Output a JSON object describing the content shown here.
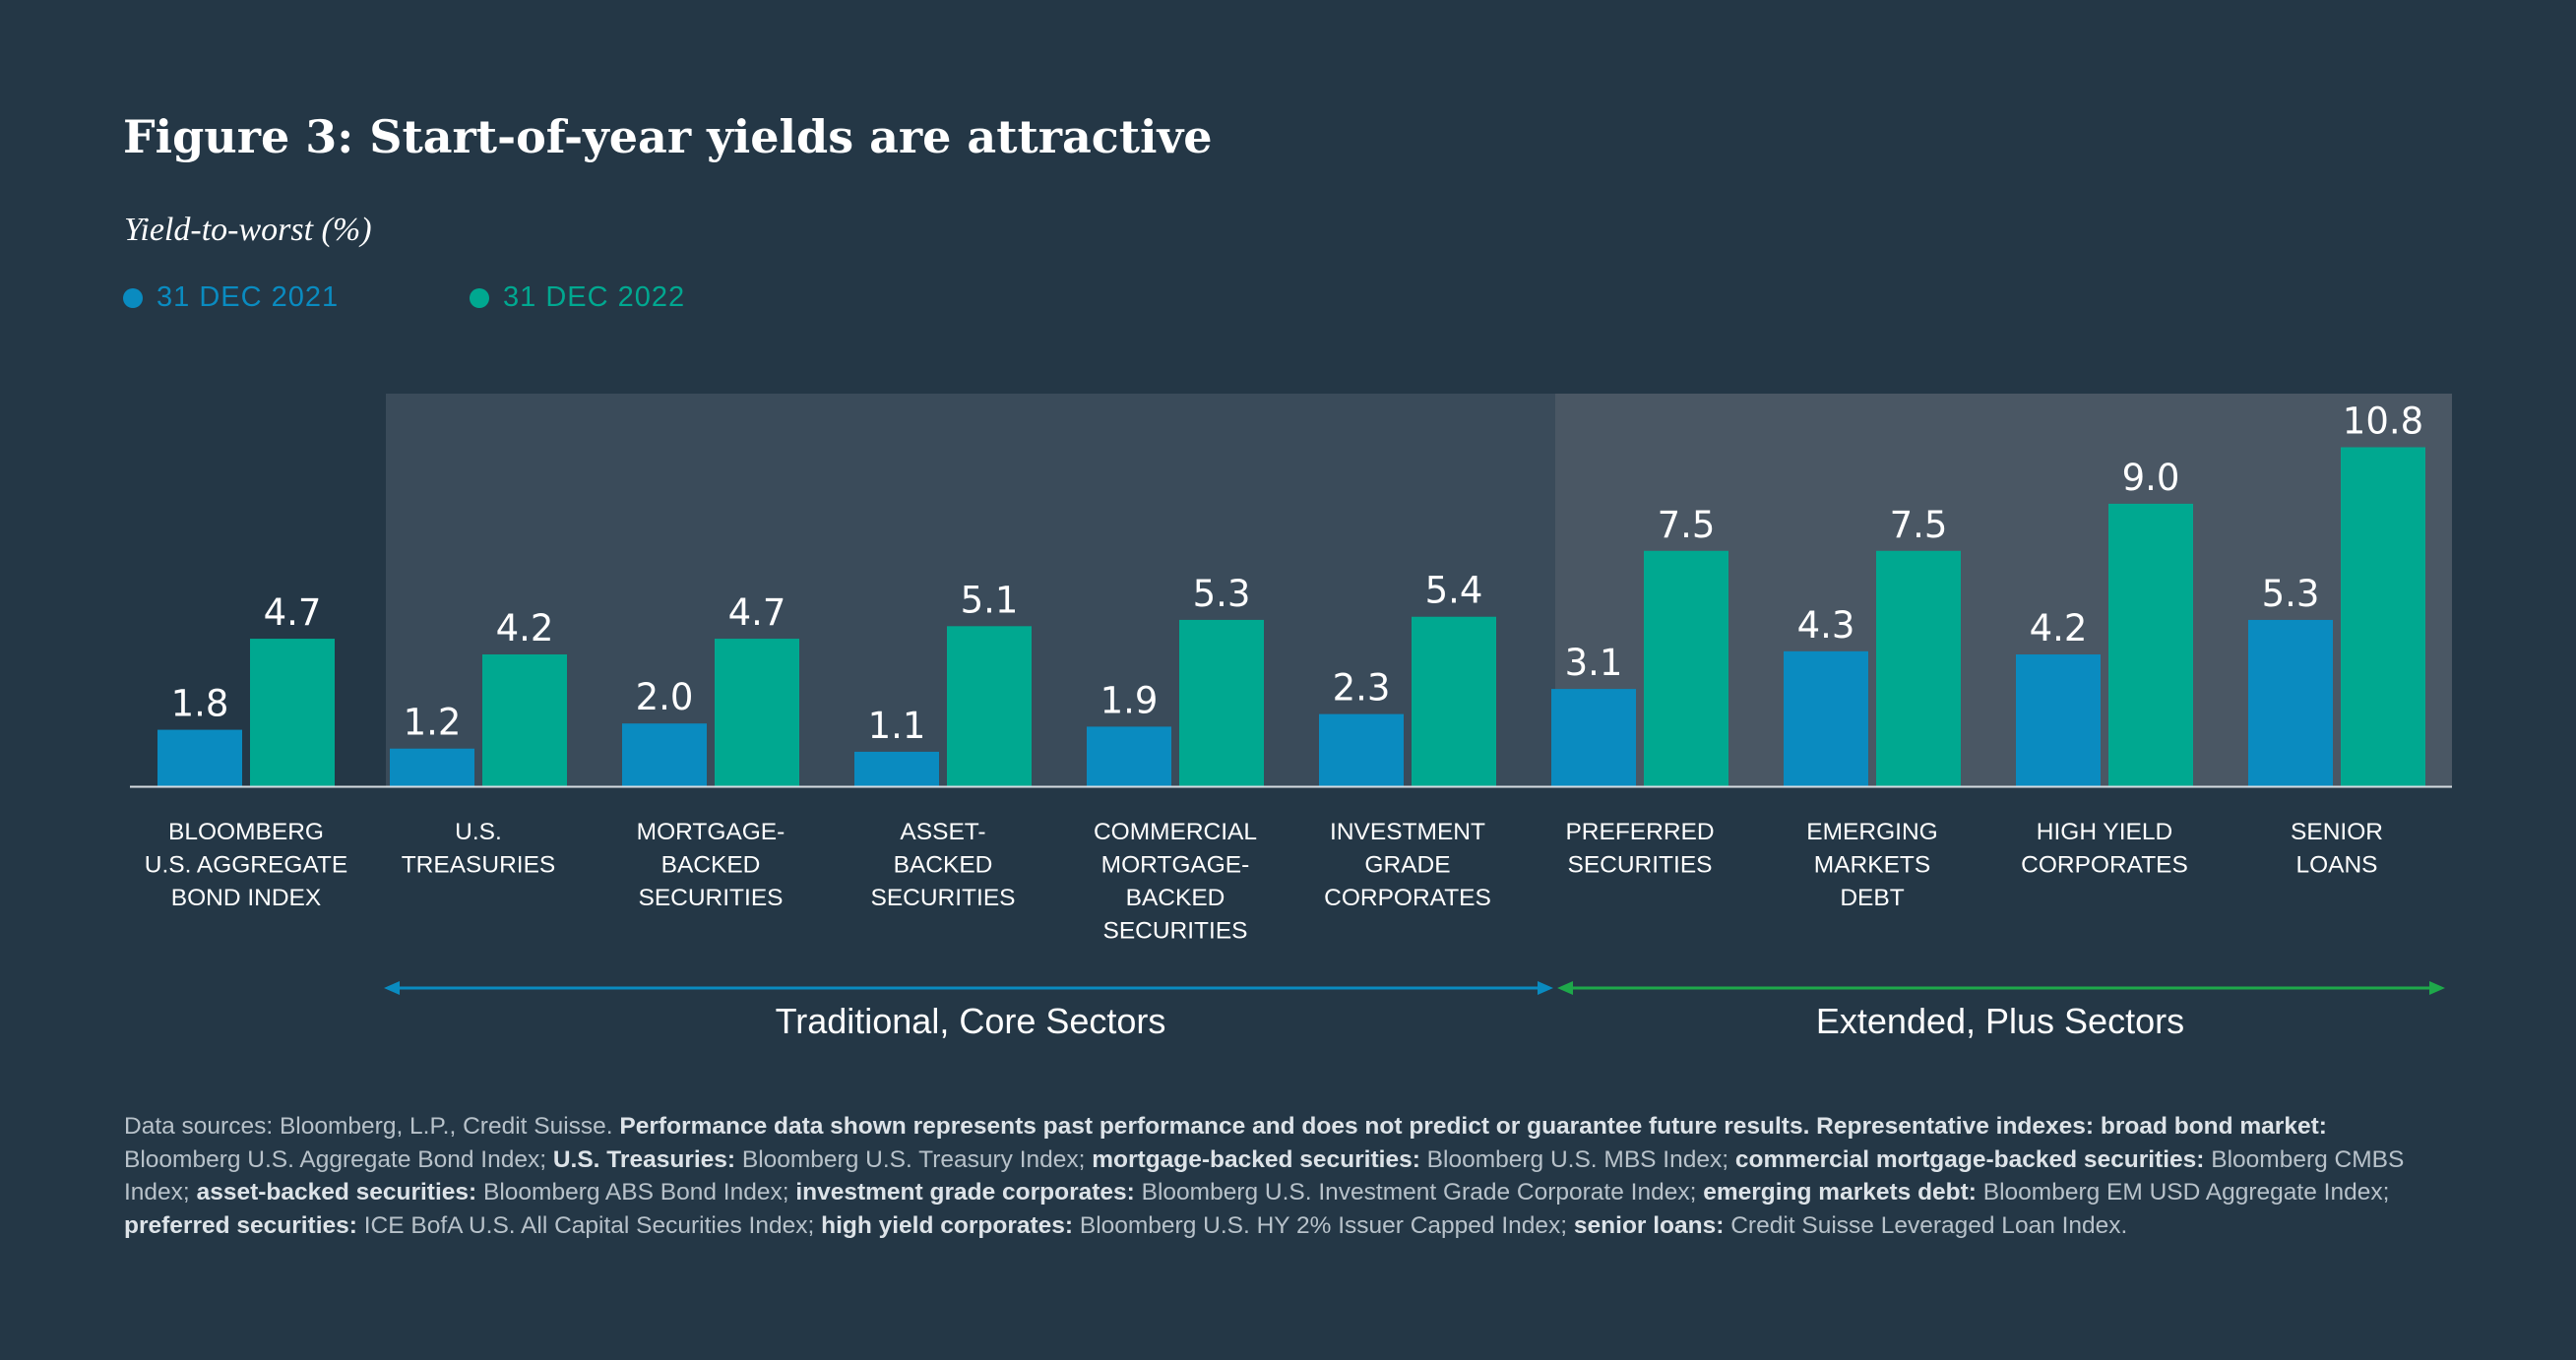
{
  "title": "Figure 3: Start-of-year yields are attractive",
  "subtitle": "Yield-to-worst (%)",
  "colors": {
    "background": "#243746",
    "series_2021": "#0a8bc0",
    "series_2022": "#00a890",
    "panel_core": "#3a4b5a",
    "panel_plus": "#4a5764",
    "arrow_core": "#0a8bc0",
    "arrow_plus": "#1ea84a"
  },
  "chart_data": {
    "type": "bar",
    "title": "Figure 3: Start-of-year yields are attractive",
    "ylabel": "Yield-to-worst (%)",
    "xlabel": "",
    "ylim": [
      0,
      11
    ],
    "grid": false,
    "legend_position": "top-left",
    "categories": [
      [
        "BLOOMBERG",
        "U.S. AGGREGATE",
        "BOND INDEX"
      ],
      [
        "U.S.",
        "TREASURIES"
      ],
      [
        "MORTGAGE-",
        "BACKED",
        "SECURITIES"
      ],
      [
        "ASSET-",
        "BACKED",
        "SECURITIES"
      ],
      [
        "COMMERCIAL",
        "MORTGAGE-",
        "BACKED",
        "SECURITIES"
      ],
      [
        "INVESTMENT",
        "GRADE",
        "CORPORATES"
      ],
      [
        "PREFERRED",
        "SECURITIES"
      ],
      [
        "EMERGING",
        "MARKETS",
        "DEBT"
      ],
      [
        "HIGH YIELD",
        "CORPORATES"
      ],
      [
        "SENIOR",
        "LOANS"
      ]
    ],
    "series": [
      {
        "name": "31 DEC 2021",
        "values": [
          1.8,
          1.2,
          2.0,
          1.1,
          1.9,
          2.3,
          3.1,
          4.3,
          4.2,
          5.3
        ],
        "labels": [
          "1.8",
          "1.2",
          "2.0",
          "1.1",
          "1.9",
          "2.3",
          "3.1",
          "4.3",
          "4.2",
          "5.3"
        ]
      },
      {
        "name": "31 DEC 2022",
        "values": [
          4.7,
          4.2,
          4.7,
          5.1,
          5.3,
          5.4,
          7.5,
          7.5,
          9.0,
          10.8
        ],
        "labels": [
          "4.7",
          "4.2",
          "4.7",
          "5.1",
          "5.3",
          "5.4",
          "7.5",
          "7.5",
          "9.0",
          "10.8"
        ]
      }
    ],
    "groups": [
      {
        "label": "Traditional, Core Sectors",
        "start_index": 1,
        "end_index": 5
      },
      {
        "label": "Extended, Plus Sectors",
        "start_index": 6,
        "end_index": 9
      }
    ]
  },
  "footnote": [
    {
      "text": "Data sources: Bloomberg, L.P., Credit Suisse. ",
      "bold": false
    },
    {
      "text": "Performance data shown represents past performance and does not predict or guarantee future results. Representative indexes: broad bond market:",
      "bold": true
    },
    {
      "text": " Bloomberg U.S. Aggregate Bond Index; ",
      "bold": false
    },
    {
      "text": "U.S. Treasuries:",
      "bold": true
    },
    {
      "text": " Bloomberg U.S. Treasury Index; ",
      "bold": false
    },
    {
      "text": "mortgage-backed securities:",
      "bold": true
    },
    {
      "text": " Bloomberg U.S. MBS Index; ",
      "bold": false
    },
    {
      "text": "commercial mortgage-backed securities:",
      "bold": true
    },
    {
      "text": " Bloomberg CMBS Index; ",
      "bold": false
    },
    {
      "text": "asset-backed securities:",
      "bold": true
    },
    {
      "text": " Bloomberg ABS Bond Index; ",
      "bold": false
    },
    {
      "text": "investment grade corporates:",
      "bold": true
    },
    {
      "text": " Bloomberg U.S. Investment Grade Corporate Index; ",
      "bold": false
    },
    {
      "text": "emerging markets debt:",
      "bold": true
    },
    {
      "text": " Bloomberg EM USD Aggregate Index; ",
      "bold": false
    },
    {
      "text": "preferred securities:",
      "bold": true
    },
    {
      "text": " ICE BofA U.S. All Capital Securities Index; ",
      "bold": false
    },
    {
      "text": "high yield corporates:",
      "bold": true
    },
    {
      "text": " Bloomberg U.S. HY 2% Issuer Capped Index; ",
      "bold": false
    },
    {
      "text": "senior loans:",
      "bold": true
    },
    {
      "text": " Credit Suisse Leveraged Loan Index.",
      "bold": false
    }
  ]
}
